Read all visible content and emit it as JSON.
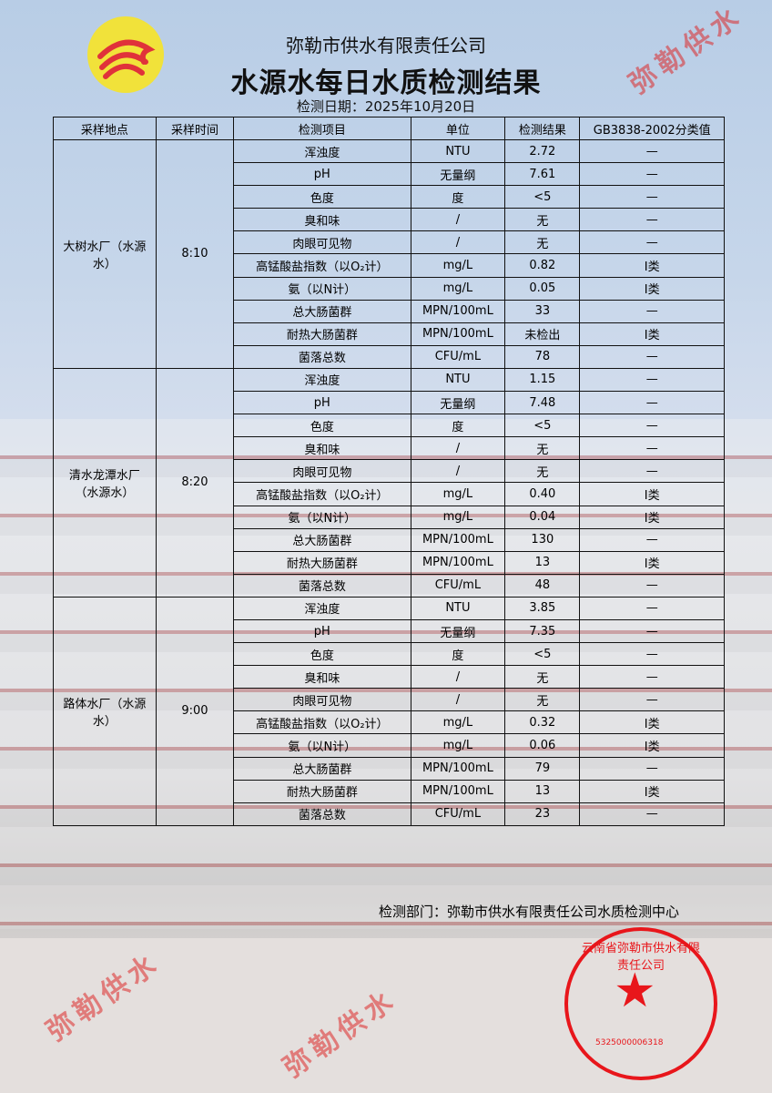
{
  "header": {
    "company": "弥勒市供水有限责任公司",
    "title": "水源水每日水质检测结果",
    "date": "检测日期：2025年10月20日"
  },
  "table": {
    "columns": [
      "采样地点",
      "采样时间",
      "检测项目",
      "单位",
      "检测结果",
      "GB3838-2002分类值"
    ],
    "groups": [
      {
        "site": "大树水厂（水源水）",
        "time": "8:10",
        "rows": [
          [
            "浑浊度",
            "NTU",
            "2.72",
            "—"
          ],
          [
            "pH",
            "无量纲",
            "7.61",
            "—"
          ],
          [
            "色度",
            "度",
            "<5",
            "—"
          ],
          [
            "臭和味",
            "/",
            "无",
            "—"
          ],
          [
            "肉眼可见物",
            "/",
            "无",
            "—"
          ],
          [
            "高锰酸盐指数（以O₂计）",
            "mg/L",
            "0.82",
            "Ⅰ类"
          ],
          [
            "氨（以N计）",
            "mg/L",
            "0.05",
            "Ⅰ类"
          ],
          [
            "总大肠菌群",
            "MPN/100mL",
            "33",
            "—"
          ],
          [
            "耐热大肠菌群",
            "MPN/100mL",
            "未检出",
            "Ⅰ类"
          ],
          [
            "菌落总数",
            "CFU/mL",
            "78",
            "—"
          ]
        ]
      },
      {
        "site": "清水龙潭水厂（水源水）",
        "time": "8:20",
        "rows": [
          [
            "浑浊度",
            "NTU",
            "1.15",
            "—"
          ],
          [
            "pH",
            "无量纲",
            "7.48",
            "—"
          ],
          [
            "色度",
            "度",
            "<5",
            "—"
          ],
          [
            "臭和味",
            "/",
            "无",
            "—"
          ],
          [
            "肉眼可见物",
            "/",
            "无",
            "—"
          ],
          [
            "高锰酸盐指数（以O₂计）",
            "mg/L",
            "0.40",
            "Ⅰ类"
          ],
          [
            "氨（以N计）",
            "mg/L",
            "0.04",
            "Ⅰ类"
          ],
          [
            "总大肠菌群",
            "MPN/100mL",
            "130",
            "—"
          ],
          [
            "耐热大肠菌群",
            "MPN/100mL",
            "13",
            "Ⅰ类"
          ],
          [
            "菌落总数",
            "CFU/mL",
            "48",
            "—"
          ]
        ]
      },
      {
        "site": "路体水厂（水源水）",
        "time": "9:00",
        "rows": [
          [
            "浑浊度",
            "NTU",
            "3.85",
            "—"
          ],
          [
            "pH",
            "无量纲",
            "7.35",
            "—"
          ],
          [
            "色度",
            "度",
            "<5",
            "—"
          ],
          [
            "臭和味",
            "/",
            "无",
            "—"
          ],
          [
            "肉眼可见物",
            "/",
            "无",
            "—"
          ],
          [
            "高锰酸盐指数（以O₂计）",
            "mg/L",
            "0.32",
            "Ⅰ类"
          ],
          [
            "氨（以N计）",
            "mg/L",
            "0.06",
            "Ⅰ类"
          ],
          [
            "总大肠菌群",
            "MPN/100mL",
            "79",
            "—"
          ],
          [
            "耐热大肠菌群",
            "MPN/100mL",
            "13",
            "Ⅰ类"
          ],
          [
            "菌落总数",
            "CFU/mL",
            "23",
            "—"
          ]
        ]
      }
    ]
  },
  "watermark": "弥勒供水",
  "footer": {
    "dept": "检测部门：弥勒市供水有限责任公司水质检测中心"
  },
  "stamp": {
    "name": "云南省弥勒市供水有限责任公司",
    "code": "5325000006318"
  },
  "colors": {
    "stamp": "#e8161b",
    "logo_bg": "#f1e23a",
    "logo_mark": "#e0323a"
  }
}
